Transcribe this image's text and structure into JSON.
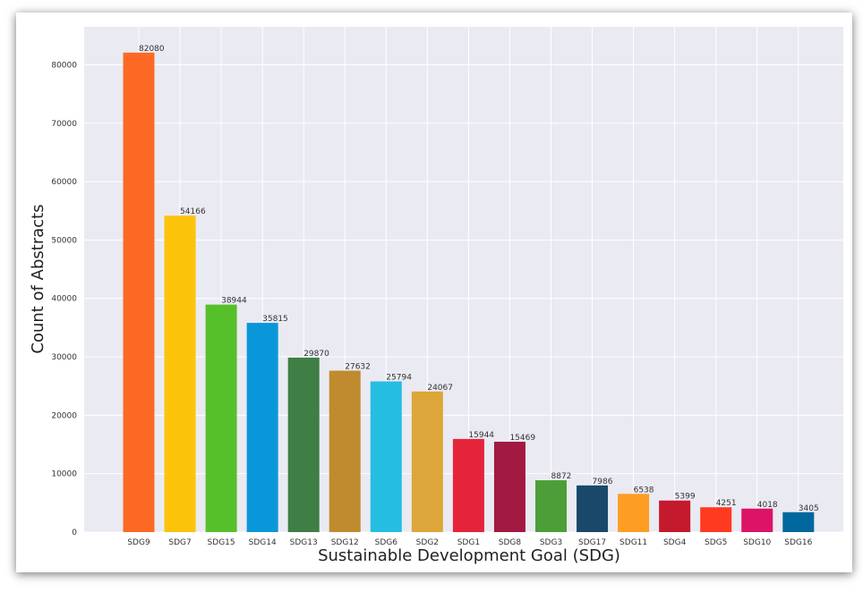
{
  "chart_data": {
    "type": "bar",
    "title": "",
    "xlabel": "Sustainable Development Goal (SDG)",
    "ylabel": "Count of Abstracts",
    "ylim": [
      0,
      86500
    ],
    "yticks": [
      0,
      10000,
      20000,
      30000,
      40000,
      50000,
      60000,
      70000,
      80000
    ],
    "grid": true,
    "categories": [
      "SDG9",
      "SDG7",
      "SDG15",
      "SDG14",
      "SDG13",
      "SDG12",
      "SDG6",
      "SDG2",
      "SDG1",
      "SDG8",
      "SDG3",
      "SDG17",
      "SDG11",
      "SDG4",
      "SDG5",
      "SDG10",
      "SDG16"
    ],
    "values": [
      82080,
      54166,
      38944,
      35815,
      29870,
      27632,
      25794,
      24067,
      15944,
      15469,
      8872,
      7986,
      6538,
      5399,
      4251,
      4018,
      3405
    ],
    "colors": [
      "#fd6925",
      "#fcc30b",
      "#56c02b",
      "#0a97d9",
      "#3f7e44",
      "#bf8b2e",
      "#26bde2",
      "#dda63a",
      "#e5243b",
      "#a21942",
      "#4c9f38",
      "#19486a",
      "#fd9d24",
      "#c5192d",
      "#ff3a21",
      "#dd1367",
      "#00689d"
    ]
  }
}
